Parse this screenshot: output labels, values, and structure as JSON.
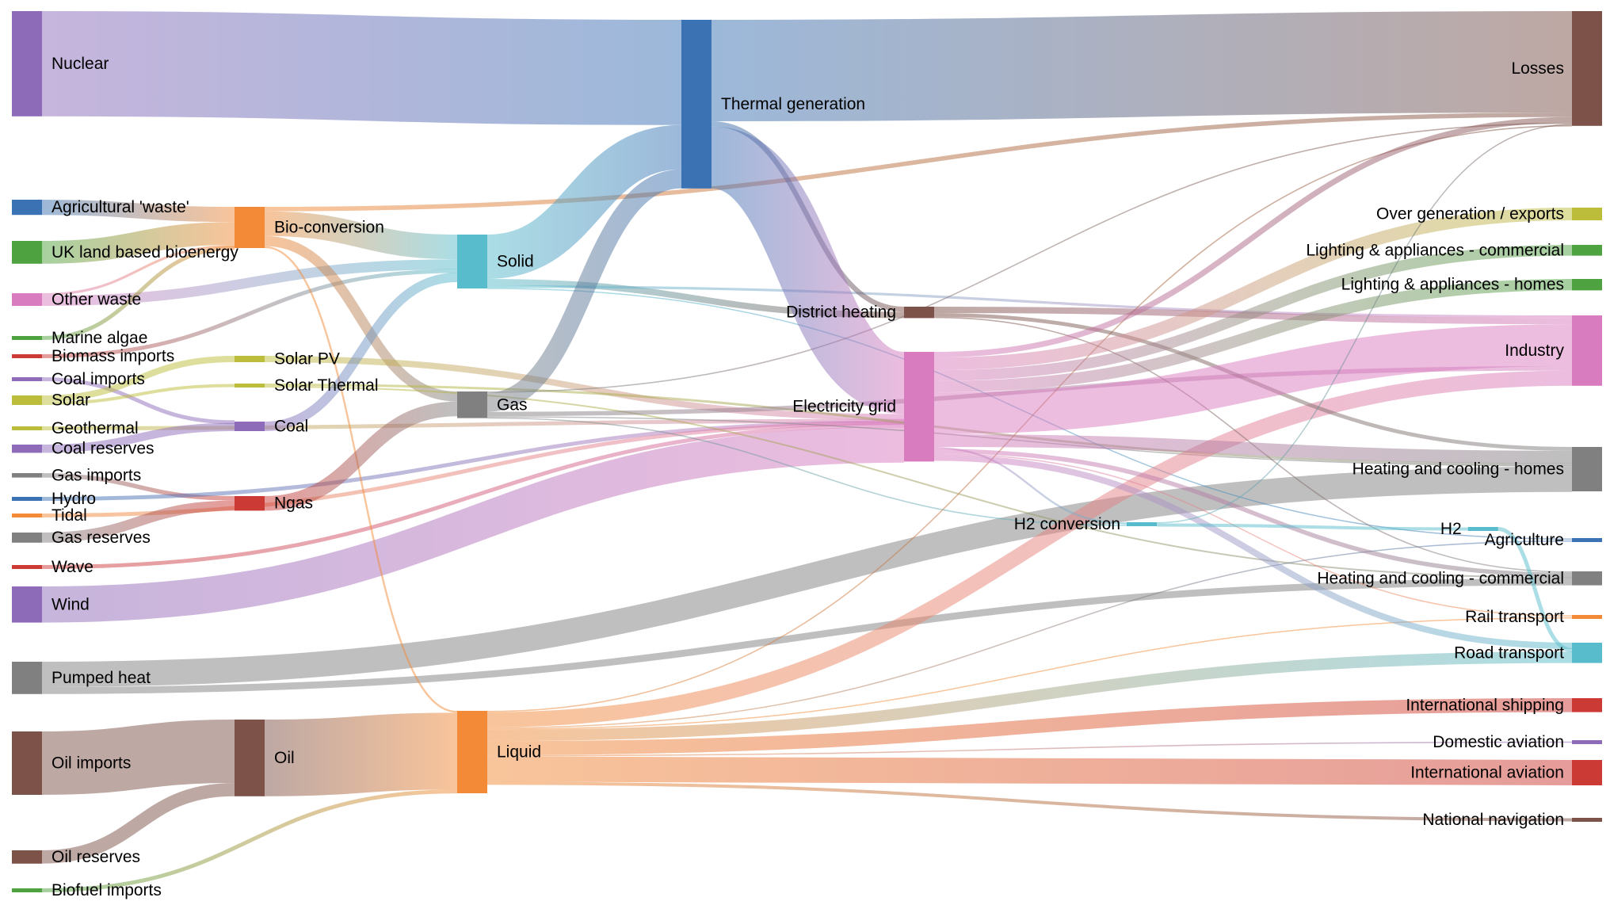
{
  "nodes": [
    {
      "id": "nuclear",
      "label": "Nuclear",
      "color": "#8e6bb9"
    },
    {
      "id": "ag_waste",
      "label": "Agricultural 'waste'",
      "color": "#3a72b4"
    },
    {
      "id": "uk_bio",
      "label": "UK land based bioenergy",
      "color": "#4ea240"
    },
    {
      "id": "other_waste",
      "label": "Other waste",
      "color": "#d97bbf"
    },
    {
      "id": "marine",
      "label": "Marine algae",
      "color": "#4ea240"
    },
    {
      "id": "bio_imports",
      "label": "Biomass imports",
      "color": "#cc3a35"
    },
    {
      "id": "coal_imports",
      "label": "Coal imports",
      "color": "#8e6bb9"
    },
    {
      "id": "solar",
      "label": "Solar",
      "color": "#bcbd3b"
    },
    {
      "id": "geothermal",
      "label": "Geothermal",
      "color": "#bcbd3b"
    },
    {
      "id": "coal_reserves",
      "label": "Coal reserves",
      "color": "#8e6bb9"
    },
    {
      "id": "gas_imports",
      "label": "Gas imports",
      "color": "#808080"
    },
    {
      "id": "hydro",
      "label": "Hydro",
      "color": "#3a72b4"
    },
    {
      "id": "tidal",
      "label": "Tidal",
      "color": "#f28a37"
    },
    {
      "id": "gas_reserves",
      "label": "Gas reserves",
      "color": "#808080"
    },
    {
      "id": "wave",
      "label": "Wave",
      "color": "#cc3a35"
    },
    {
      "id": "wind",
      "label": "Wind",
      "color": "#8e6bb9"
    },
    {
      "id": "pumped_heat",
      "label": "Pumped heat",
      "color": "#808080"
    },
    {
      "id": "oil_imports",
      "label": "Oil imports",
      "color": "#7d5249"
    },
    {
      "id": "oil_reserves",
      "label": "Oil reserves",
      "color": "#7d5249"
    },
    {
      "id": "biofuel_imports",
      "label": "Biofuel imports",
      "color": "#4ea240"
    },
    {
      "id": "bio_conversion",
      "label": "Bio-conversion",
      "color": "#f28a37"
    },
    {
      "id": "solar_pv",
      "label": "Solar PV",
      "color": "#bcbd3b"
    },
    {
      "id": "solar_thermal",
      "label": "Solar Thermal",
      "color": "#bcbd3b"
    },
    {
      "id": "coal",
      "label": "Coal",
      "color": "#8e6bb9"
    },
    {
      "id": "ngas",
      "label": "Ngas",
      "color": "#cc3a35"
    },
    {
      "id": "oil",
      "label": "Oil",
      "color": "#7d5249"
    },
    {
      "id": "solid",
      "label": "Solid",
      "color": "#58bccc"
    },
    {
      "id": "gas",
      "label": "Gas",
      "color": "#808080"
    },
    {
      "id": "liquid",
      "label": "Liquid",
      "color": "#f28a37"
    },
    {
      "id": "thermal",
      "label": "Thermal generation",
      "color": "#3a72b4"
    },
    {
      "id": "district",
      "label": "District heating",
      "color": "#7d5249"
    },
    {
      "id": "grid",
      "label": "Electricity grid",
      "color": "#d97bbf"
    },
    {
      "id": "h2conv",
      "label": "H2 conversion",
      "color": "#58bccc"
    },
    {
      "id": "h2",
      "label": "H2",
      "color": "#58bccc"
    },
    {
      "id": "losses",
      "label": "Losses",
      "color": "#7d5249"
    },
    {
      "id": "overgen",
      "label": "Over generation / exports",
      "color": "#bcbd3b"
    },
    {
      "id": "light_comm",
      "label": "Lighting & appliances - commercial",
      "color": "#4ea240"
    },
    {
      "id": "light_home",
      "label": "Lighting & appliances - homes",
      "color": "#4ea240"
    },
    {
      "id": "industry",
      "label": "Industry",
      "color": "#d97bbf"
    },
    {
      "id": "heat_home",
      "label": "Heating and cooling - homes",
      "color": "#808080"
    },
    {
      "id": "agriculture",
      "label": "Agriculture",
      "color": "#3a72b4"
    },
    {
      "id": "heat_comm",
      "label": "Heating and cooling - commercial",
      "color": "#808080"
    },
    {
      "id": "rail",
      "label": "Rail transport",
      "color": "#f28a37"
    },
    {
      "id": "road",
      "label": "Road transport",
      "color": "#58bccc"
    },
    {
      "id": "intl_ship",
      "label": "International shipping",
      "color": "#cc3a35"
    },
    {
      "id": "dom_av",
      "label": "Domestic aviation",
      "color": "#8e6bb9"
    },
    {
      "id": "intl_av",
      "label": "International aviation",
      "color": "#cc3a35"
    },
    {
      "id": "nat_nav",
      "label": "National navigation",
      "color": "#7d5249"
    }
  ],
  "links": [
    {
      "source": "nuclear",
      "target": "thermal",
      "value": 166
    },
    {
      "source": "ag_waste",
      "target": "bio_conversion",
      "value": 24
    },
    {
      "source": "uk_bio",
      "target": "bio_conversion",
      "value": 36
    },
    {
      "source": "other_waste",
      "target": "bio_conversion",
      "value": 4
    },
    {
      "source": "other_waste",
      "target": "solid",
      "value": 16
    },
    {
      "source": "marine",
      "target": "bio_conversion",
      "value": 1
    },
    {
      "source": "bio_imports",
      "target": "solid",
      "value": 5
    },
    {
      "source": "coal_imports",
      "target": "coal",
      "value": 2
    },
    {
      "source": "solar",
      "target": "solar_pv",
      "value": 10
    },
    {
      "source": "solar",
      "target": "solar_thermal",
      "value": 5
    },
    {
      "source": "geothermal",
      "target": "grid",
      "value": 1
    },
    {
      "source": "coal_reserves",
      "target": "coal",
      "value": 13
    },
    {
      "source": "gas_imports",
      "target": "ngas",
      "value": 7
    },
    {
      "source": "hydro",
      "target": "grid",
      "value": 2
    },
    {
      "source": "tidal",
      "target": "grid",
      "value": 1
    },
    {
      "source": "gas_reserves",
      "target": "ngas",
      "value": 16
    },
    {
      "source": "wave",
      "target": "grid",
      "value": 4
    },
    {
      "source": "wind",
      "target": "grid",
      "value": 57
    },
    {
      "source": "pumped_heat",
      "target": "heat_home",
      "value": 40
    },
    {
      "source": "pumped_heat",
      "target": "heat_comm",
      "value": 11
    },
    {
      "source": "oil_imports",
      "target": "oil",
      "value": 100
    },
    {
      "source": "oil_reserves",
      "target": "oil",
      "value": 21
    },
    {
      "source": "biofuel_imports",
      "target": "liquid",
      "value": 6
    },
    {
      "source": "bio_conversion",
      "target": "losses",
      "value": 7
    },
    {
      "source": "bio_conversion",
      "target": "solid",
      "value": 39
    },
    {
      "source": "bio_conversion",
      "target": "gas",
      "value": 16
    },
    {
      "source": "bio_conversion",
      "target": "liquid",
      "value": 3
    },
    {
      "source": "solar_pv",
      "target": "grid",
      "value": 10
    },
    {
      "source": "solar_thermal",
      "target": "heat_home",
      "value": 3
    },
    {
      "source": "solar_thermal",
      "target": "heat_comm",
      "value": 2
    },
    {
      "source": "coal",
      "target": "solid",
      "value": 15
    },
    {
      "source": "ngas",
      "target": "gas",
      "value": 23
    },
    {
      "source": "oil",
      "target": "liquid",
      "value": 121
    },
    {
      "source": "solid",
      "target": "thermal",
      "value": 70
    },
    {
      "source": "solid",
      "target": "district",
      "value": 10
    },
    {
      "source": "solid",
      "target": "industry",
      "value": 4
    },
    {
      "source": "solid",
      "target": "agriculture",
      "value": 1
    },
    {
      "source": "gas",
      "target": "thermal",
      "value": 30
    },
    {
      "source": "gas",
      "target": "losses",
      "value": 2
    },
    {
      "source": "gas",
      "target": "industry",
      "value": 7
    },
    {
      "source": "gas",
      "target": "heat_home",
      "value": 1
    },
    {
      "source": "gas",
      "target": "h2conv",
      "value": 2
    },
    {
      "source": "liquid",
      "target": "losses",
      "value": 2
    },
    {
      "source": "liquid",
      "target": "industry",
      "value": 24
    },
    {
      "source": "liquid",
      "target": "agriculture",
      "value": 1
    },
    {
      "source": "liquid",
      "target": "rail",
      "value": 1
    },
    {
      "source": "liquid",
      "target": "road",
      "value": 18
    },
    {
      "source": "liquid",
      "target": "intl_ship",
      "value": 22
    },
    {
      "source": "liquid",
      "target": "dom_av",
      "value": 2
    },
    {
      "source": "liquid",
      "target": "intl_av",
      "value": 40
    },
    {
      "source": "liquid",
      "target": "nat_nav",
      "value": 5
    },
    {
      "source": "thermal",
      "target": "losses",
      "value": 160
    },
    {
      "source": "thermal",
      "target": "district",
      "value": 8
    },
    {
      "source": "thermal",
      "target": "grid",
      "value": 98
    },
    {
      "source": "district",
      "target": "industry",
      "value": 10
    },
    {
      "source": "district",
      "target": "heat_home",
      "value": 6
    },
    {
      "source": "district",
      "target": "heat_comm",
      "value": 2
    },
    {
      "source": "grid",
      "target": "losses",
      "value": 9
    },
    {
      "source": "grid",
      "target": "overgen",
      "value": 20
    },
    {
      "source": "grid",
      "target": "light_comm",
      "value": 17
    },
    {
      "source": "grid",
      "target": "light_home",
      "value": 18
    },
    {
      "source": "grid",
      "target": "industry",
      "value": 66
    },
    {
      "source": "grid",
      "target": "heat_home",
      "value": 20
    },
    {
      "source": "grid",
      "target": "h2conv",
      "value": 3
    },
    {
      "source": "grid",
      "target": "heat_comm",
      "value": 7
    },
    {
      "source": "grid",
      "target": "rail",
      "value": 1
    },
    {
      "source": "grid",
      "target": "road",
      "value": 10
    },
    {
      "source": "h2conv",
      "target": "losses",
      "value": 1
    },
    {
      "source": "h2conv",
      "target": "h2",
      "value": 4
    },
    {
      "source": "h2",
      "target": "road",
      "value": 4
    }
  ]
}
